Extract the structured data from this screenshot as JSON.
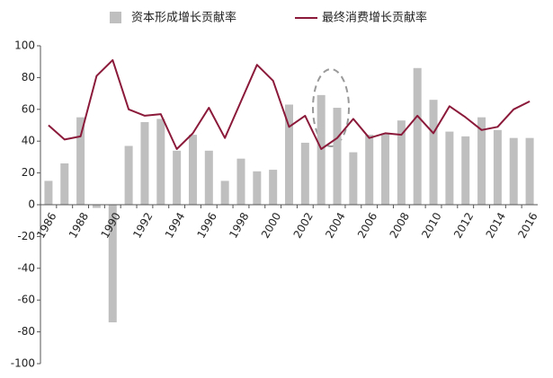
{
  "chart_data": {
    "type": "combo",
    "categories": [
      "1986",
      null,
      "1988",
      null,
      "1990",
      null,
      "1992",
      null,
      "1994",
      null,
      "1996",
      null,
      "1998",
      null,
      "2000",
      null,
      "2002",
      null,
      "2004",
      null,
      "2006",
      null,
      "2008",
      null,
      "2010",
      null,
      "2012",
      null,
      "2014",
      null,
      "2016"
    ],
    "series": [
      {
        "name": "资本形成增长贡献率",
        "type": "bar",
        "color": "#bfbfbf",
        "values": [
          15,
          26,
          55,
          -2,
          -74,
          37,
          52,
          54,
          34,
          44,
          34,
          15,
          29,
          21,
          22,
          63,
          39,
          69,
          61,
          33,
          44,
          45,
          53,
          86,
          66,
          46,
          43,
          55,
          47,
          42,
          42
        ]
      },
      {
        "name": "最终消费增长贡献率",
        "type": "line",
        "color": "#8b1a3a",
        "values": [
          50,
          41,
          43,
          81,
          91,
          60,
          56,
          57,
          35,
          45,
          61,
          42,
          65,
          88,
          78,
          49,
          56,
          35,
          42,
          54,
          42,
          45,
          44,
          56,
          45,
          62,
          55,
          47,
          49,
          60,
          65
        ]
      }
    ],
    "ylim": [
      -100,
      100
    ],
    "yticks": [
      -100,
      -80,
      -60,
      -40,
      -20,
      0,
      20,
      40,
      60,
      80,
      100
    ]
  }
}
